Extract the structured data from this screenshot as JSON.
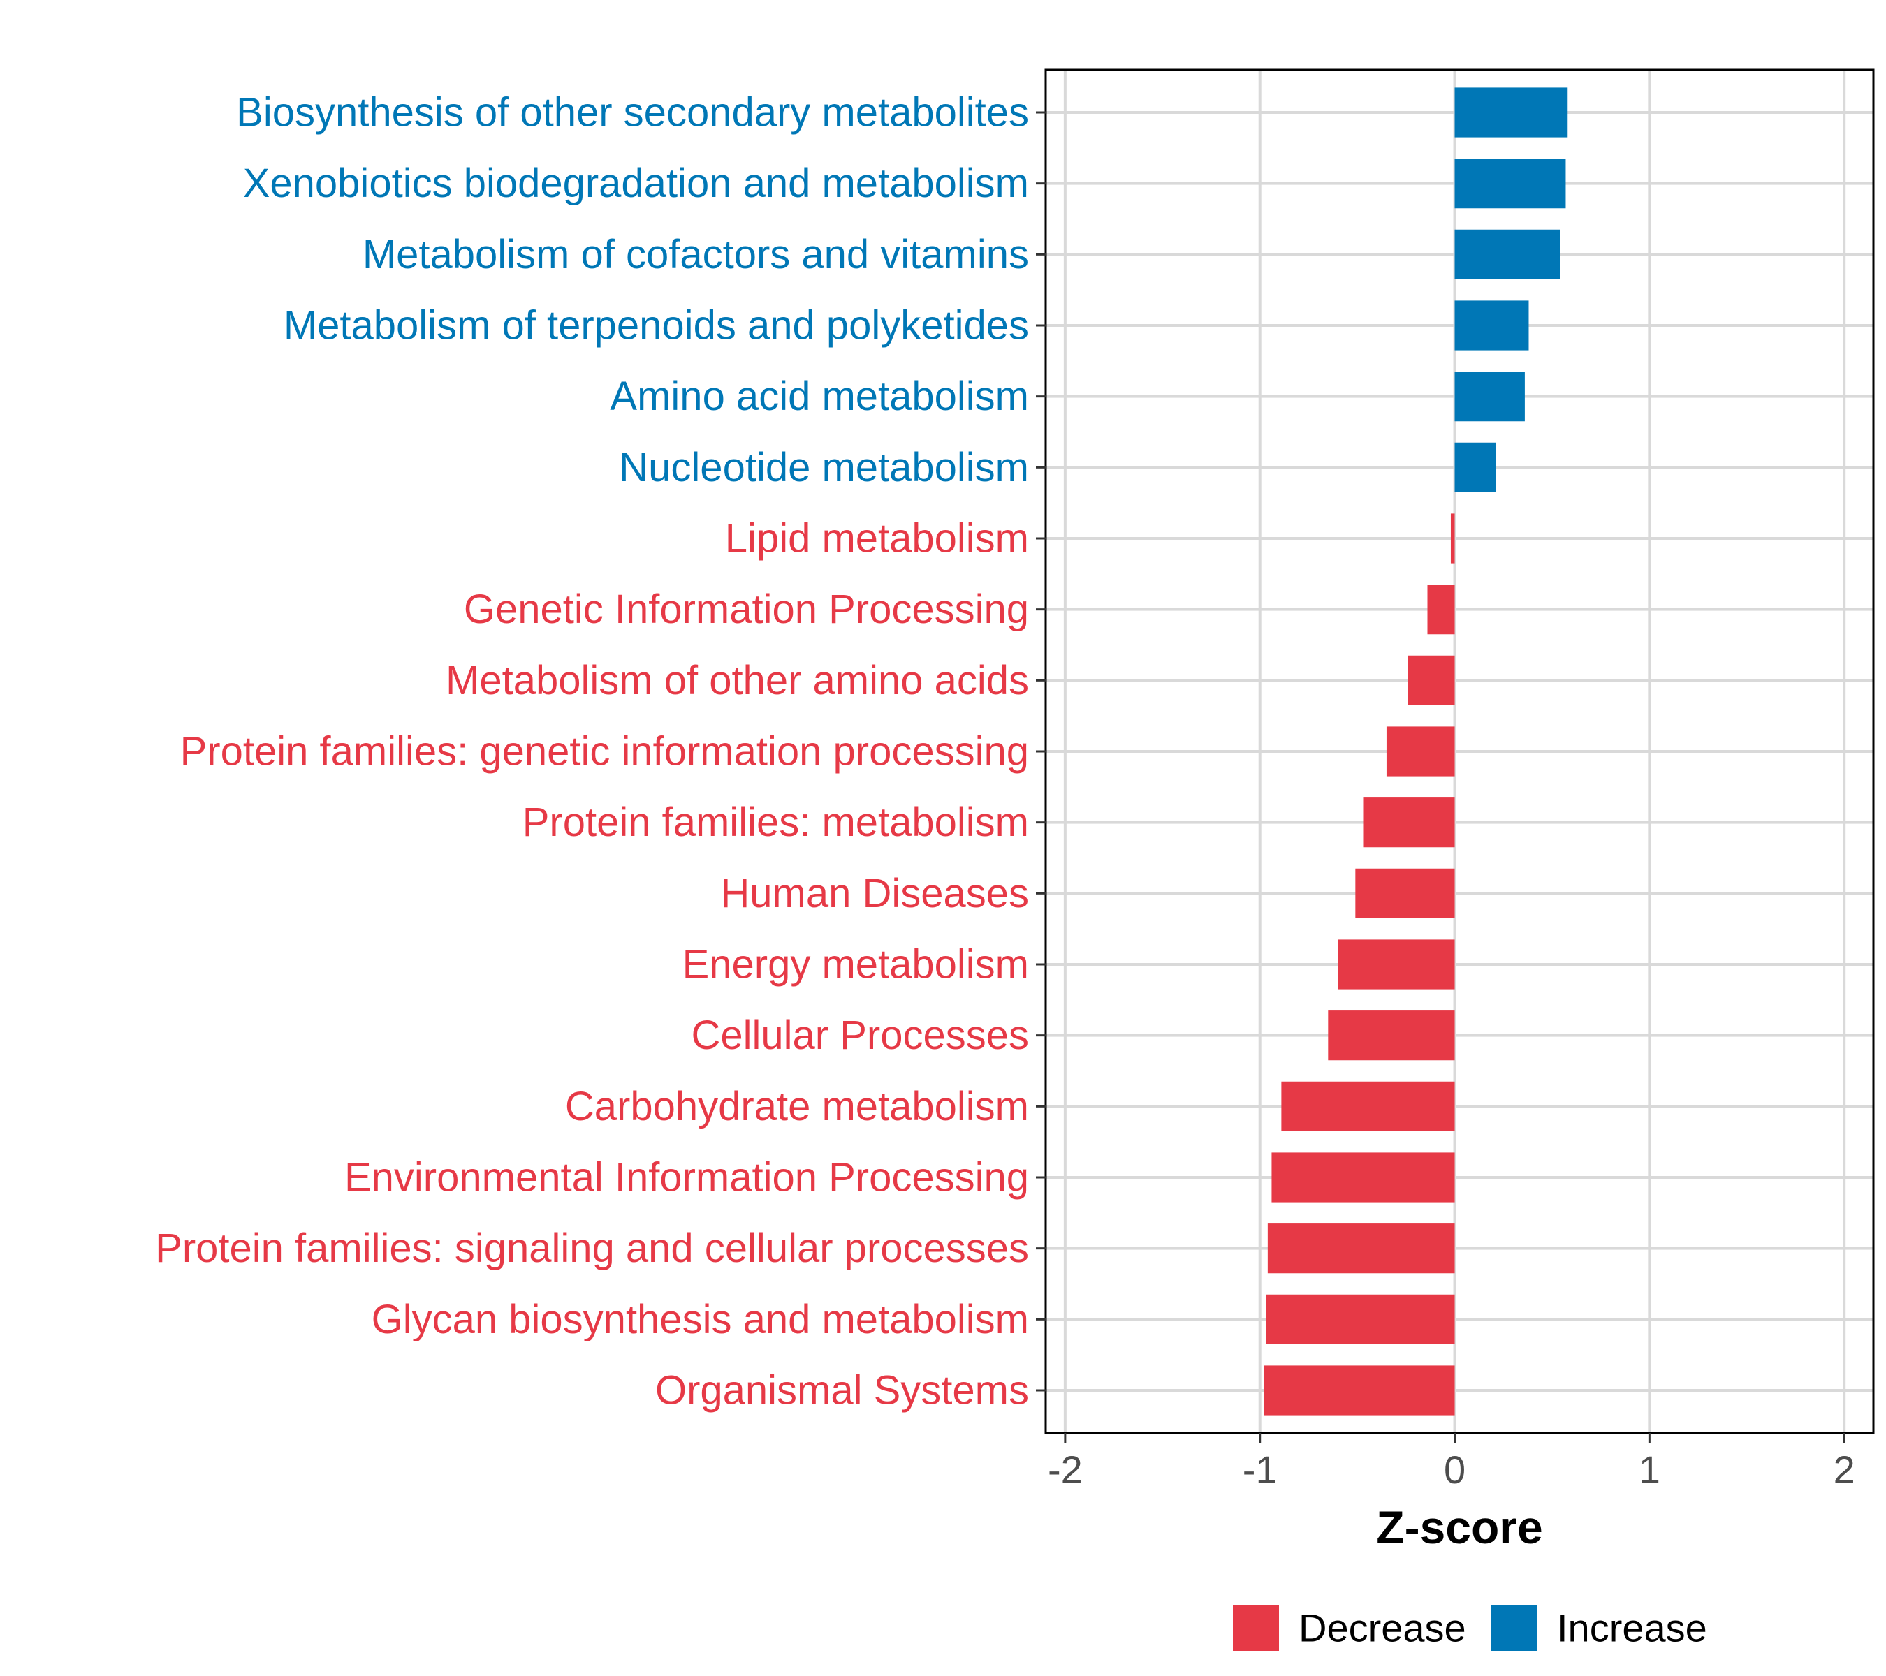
{
  "chart_data": {
    "type": "bar",
    "orientation": "horizontal",
    "xlabel": "Z-score",
    "xlim": [
      -2.1,
      2.15
    ],
    "xticks": [
      -2,
      -1,
      0,
      1,
      2
    ],
    "xtick_labels": [
      "-2",
      "-1",
      "0",
      "1",
      "2"
    ],
    "grid": true,
    "legend_position": "bottom",
    "legend": [
      {
        "name": "Decrease",
        "color": "#E63946"
      },
      {
        "name": "Increase",
        "color": "#0077B6"
      }
    ],
    "categories": [
      "Biosynthesis of other secondary metabolites",
      "Xenobiotics biodegradation and metabolism",
      "Metabolism of cofactors and vitamins",
      "Metabolism of terpenoids and polyketides",
      "Amino acid metabolism",
      "Nucleotide metabolism",
      "Lipid metabolism",
      "Genetic Information Processing",
      "Metabolism of other amino acids",
      "Protein families: genetic information processing",
      "Protein families: metabolism",
      "Human Diseases",
      "Energy metabolism",
      "Cellular Processes",
      "Carbohydrate metabolism",
      "Environmental Information Processing",
      "Protein families: signaling and cellular processes",
      "Glycan biosynthesis and metabolism",
      "Organismal Systems"
    ],
    "values": [
      0.58,
      0.57,
      0.54,
      0.38,
      0.36,
      0.21,
      -0.02,
      -0.14,
      -0.24,
      -0.35,
      -0.47,
      -0.51,
      -0.6,
      -0.65,
      -0.89,
      -0.94,
      -0.96,
      -0.97,
      -0.98
    ],
    "groups": [
      "Increase",
      "Increase",
      "Increase",
      "Increase",
      "Increase",
      "Increase",
      "Decrease",
      "Decrease",
      "Decrease",
      "Decrease",
      "Decrease",
      "Decrease",
      "Decrease",
      "Decrease",
      "Decrease",
      "Decrease",
      "Decrease",
      "Decrease",
      "Decrease"
    ]
  }
}
